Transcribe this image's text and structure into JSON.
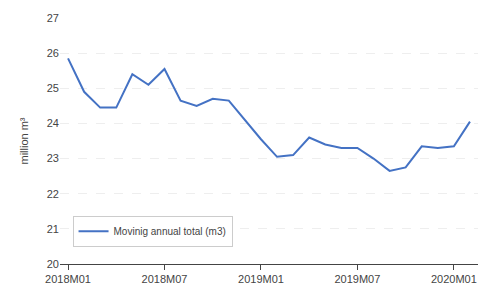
{
  "chart_data": {
    "type": "line",
    "ylabel": "million m³",
    "categories": [
      "2018M01",
      null,
      null,
      null,
      null,
      null,
      "2018M07",
      null,
      null,
      null,
      null,
      null,
      "2019M01",
      null,
      null,
      null,
      null,
      null,
      "2019M07",
      null,
      null,
      null,
      null,
      null,
      "2020M01",
      null
    ],
    "series": [
      {
        "name": "Movinig annual total (m3)",
        "color": "#4472C4",
        "values": [
          25.85,
          24.9,
          24.45,
          24.45,
          25.4,
          25.1,
          25.55,
          24.65,
          24.5,
          24.7,
          24.65,
          24.1,
          23.55,
          23.05,
          23.1,
          23.6,
          23.4,
          23.3,
          23.3,
          23.0,
          22.65,
          22.75,
          23.35,
          23.3,
          23.35,
          24.05
        ]
      }
    ],
    "ylim": [
      20,
      27
    ],
    "yticks": [
      20,
      21,
      22,
      23,
      24,
      25,
      26,
      27
    ],
    "grid": true,
    "legend": "lower left"
  }
}
